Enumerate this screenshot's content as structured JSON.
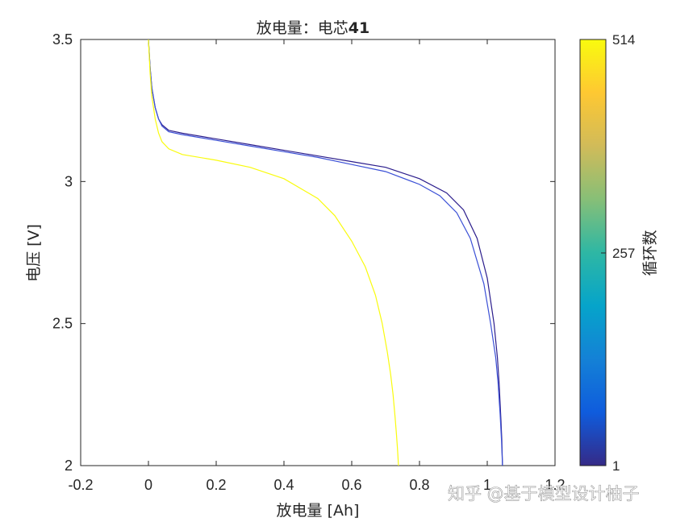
{
  "chart_data": {
    "type": "line",
    "title": "放电量：电芯",
    "title_bold_part": "41",
    "xlabel": "放电量 [Ah]",
    "ylabel": "电压 [V]",
    "xlim": [
      -0.2,
      1.2
    ],
    "ylim": [
      2,
      3.5
    ],
    "xticks": [
      "-0.2",
      "0",
      "0.2",
      "0.4",
      "0.6",
      "0.8",
      "1",
      "1.2"
    ],
    "yticks": [
      "2",
      "2.5",
      "3",
      "3.5"
    ],
    "grid": false,
    "colorbar": {
      "label": "循环数",
      "ticks": [
        "1",
        "257",
        "514"
      ],
      "min": 1,
      "max": 514,
      "colormap": "parula",
      "colors": [
        "#352a87",
        "#0f5cdd",
        "#1481d6",
        "#06a4ca",
        "#2eb7a4",
        "#87bf77",
        "#d1bb59",
        "#fec832",
        "#f9fb0e"
      ]
    },
    "series": [
      {
        "cycle": 1,
        "color": "#2b1d8c",
        "x": [
          0,
          0.005,
          0.01,
          0.02,
          0.03,
          0.04,
          0.06,
          0.1,
          0.2,
          0.3,
          0.4,
          0.5,
          0.6,
          0.7,
          0.8,
          0.88,
          0.93,
          0.97,
          1.0,
          1.02,
          1.03,
          1.035,
          1.04,
          1.043,
          1.045
        ],
        "y": [
          3.5,
          3.4,
          3.33,
          3.26,
          3.22,
          3.2,
          3.18,
          3.17,
          3.15,
          3.13,
          3.11,
          3.09,
          3.07,
          3.05,
          3.01,
          2.96,
          2.9,
          2.8,
          2.66,
          2.5,
          2.38,
          2.29,
          2.17,
          2.09,
          2.0
        ]
      },
      {
        "cycle": 60,
        "color": "#3b50d6",
        "x": [
          0,
          0.005,
          0.01,
          0.02,
          0.03,
          0.04,
          0.06,
          0.1,
          0.2,
          0.3,
          0.4,
          0.5,
          0.6,
          0.7,
          0.8,
          0.86,
          0.91,
          0.95,
          0.99,
          1.01,
          1.025,
          1.032,
          1.038,
          1.042,
          1.045
        ],
        "y": [
          3.5,
          3.4,
          3.33,
          3.26,
          3.22,
          3.195,
          3.175,
          3.165,
          3.145,
          3.125,
          3.105,
          3.085,
          3.06,
          3.035,
          2.99,
          2.95,
          2.89,
          2.8,
          2.64,
          2.5,
          2.38,
          2.29,
          2.18,
          2.09,
          2.0
        ]
      },
      {
        "cycle": 514,
        "color": "#f9fb0e",
        "x": [
          0,
          0.005,
          0.01,
          0.02,
          0.03,
          0.04,
          0.06,
          0.1,
          0.2,
          0.3,
          0.4,
          0.5,
          0.55,
          0.6,
          0.64,
          0.67,
          0.69,
          0.705,
          0.715,
          0.722,
          0.728,
          0.732,
          0.735,
          0.737,
          0.738
        ],
        "y": [
          3.5,
          3.38,
          3.3,
          3.22,
          3.17,
          3.14,
          3.115,
          3.095,
          3.075,
          3.05,
          3.01,
          2.94,
          2.88,
          2.79,
          2.7,
          2.6,
          2.5,
          2.4,
          2.32,
          2.25,
          2.17,
          2.11,
          2.06,
          2.02,
          2.0
        ]
      }
    ]
  },
  "watermark": "知乎 @基于模型设计柚子"
}
